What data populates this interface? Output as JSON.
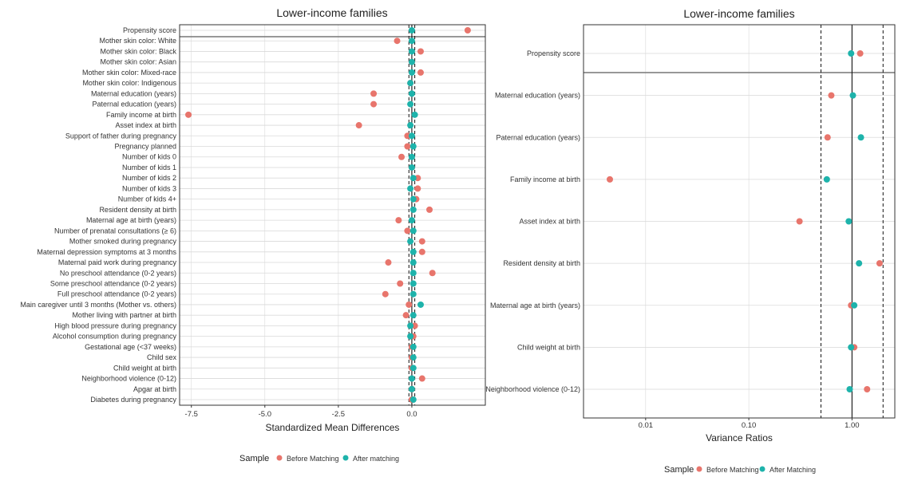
{
  "colors": {
    "before": "#E8756C",
    "after": "#1EB3AB",
    "grid": "#D9D9D9",
    "frame": "#333333"
  },
  "chart_data": [
    {
      "type": "scatter",
      "title": "Lower-income families",
      "xlabel": "Standardized Mean Differences",
      "ylabel": "",
      "xlim": [
        -7.9,
        2.5
      ],
      "xticks": [
        -7.5,
        -5.0,
        -2.5,
        0.0
      ],
      "xtick_labels": [
        "-7.5",
        "-5.0",
        "-2.5",
        "0.0"
      ],
      "reference_lines": {
        "solid": [
          0
        ],
        "dashed": [
          -0.1,
          0.1
        ]
      },
      "separator_after_first": true,
      "grid": true,
      "legend_position": "bottom",
      "legend_title": "Sample",
      "categories": [
        "Propensity score",
        "Mother skin color: White",
        "Mother skin color: Black",
        "Mother skin color: Asian",
        "Mother skin color: Mixed-race",
        "Mother skin color: Indigenous",
        "Maternal education (years)",
        "Paternal education (years)",
        "Family income at birth",
        "Asset index at birth",
        "Support of father during pregnancy",
        "Pregnancy planned",
        "Number of kids 0",
        "Number of kids 1",
        "Number of kids 2",
        "Number of kids 3",
        "Number of kids 4+",
        "Resident density at birth",
        "Maternal age at birth (years)",
        "Number of prenatal consultations (≥ 6)",
        "Mother smoked during pregnancy",
        "Maternal depression symptoms at 3 months",
        "Maternal paid work during pregnancy",
        "No preschool attendance (0-2 years)",
        "Some preschool attendance (0-2 years)",
        "Full preschool attendance (0-2 years)",
        "Main caregiver until 3 months (Mother vs. others)",
        "Mother living with partner at birth",
        "High blood pressure during pregnancy",
        "Alcohol consumption during pregnancy",
        "Gestational age (<37 weeks)",
        "Child sex",
        "Child weight at birth",
        "Neighborhood violence (0-12)",
        "Apgar at birth",
        "Diabetes during pregnancy"
      ],
      "series": [
        {
          "name": "Before Matching",
          "values": [
            1.9,
            -0.5,
            0.3,
            0.0,
            0.3,
            -0.05,
            -1.3,
            -1.3,
            -7.6,
            -1.8,
            -0.15,
            -0.15,
            -0.35,
            0.0,
            0.2,
            0.2,
            0.15,
            0.6,
            -0.45,
            -0.15,
            0.35,
            0.35,
            -0.8,
            0.7,
            -0.4,
            -0.9,
            -0.1,
            -0.2,
            0.1,
            0.05,
            0.0,
            0.0,
            0.0,
            0.35,
            0.0,
            0.0
          ]
        },
        {
          "name": "After matching",
          "values": [
            0.0,
            0.0,
            0.0,
            0.0,
            0.0,
            -0.05,
            0.0,
            -0.05,
            0.1,
            -0.05,
            0.0,
            0.05,
            0.0,
            0.0,
            0.05,
            -0.05,
            0.05,
            0.05,
            0.0,
            0.05,
            -0.05,
            0.05,
            0.05,
            0.05,
            0.05,
            0.05,
            0.3,
            0.05,
            -0.05,
            -0.05,
            0.05,
            0.05,
            0.05,
            0.0,
            0.0,
            0.05
          ]
        }
      ]
    },
    {
      "type": "scatter",
      "title": "Lower-income families",
      "xlabel": "Variance Ratios",
      "ylabel": "",
      "x_scale": "log",
      "xlim": [
        0.0025,
        2.6
      ],
      "xticks": [
        0.01,
        0.1,
        1.0
      ],
      "xtick_labels": [
        "0.01",
        "0.10",
        "1.00"
      ],
      "reference_lines": {
        "solid": [
          1.0
        ],
        "dashed": [
          0.5,
          2.0
        ]
      },
      "separator_after_first": true,
      "grid": true,
      "legend_position": "bottom",
      "legend_title": "Sample",
      "categories": [
        "Propensity score",
        "Maternal education (years)",
        "Paternal education (years)",
        "Family income at birth",
        "Asset index at birth",
        "Resident density at birth",
        "Maternal age at birth (years)",
        "Child weight at birth",
        "Neighborhood violence (0-12)"
      ],
      "series": [
        {
          "name": "Before Matching",
          "values": [
            1.2,
            0.63,
            0.58,
            0.0045,
            0.31,
            1.85,
            0.98,
            1.05,
            1.4
          ]
        },
        {
          "name": "After Matching",
          "values": [
            0.98,
            1.02,
            1.22,
            0.57,
            0.93,
            1.17,
            1.05,
            0.98,
            0.95
          ]
        }
      ]
    }
  ]
}
